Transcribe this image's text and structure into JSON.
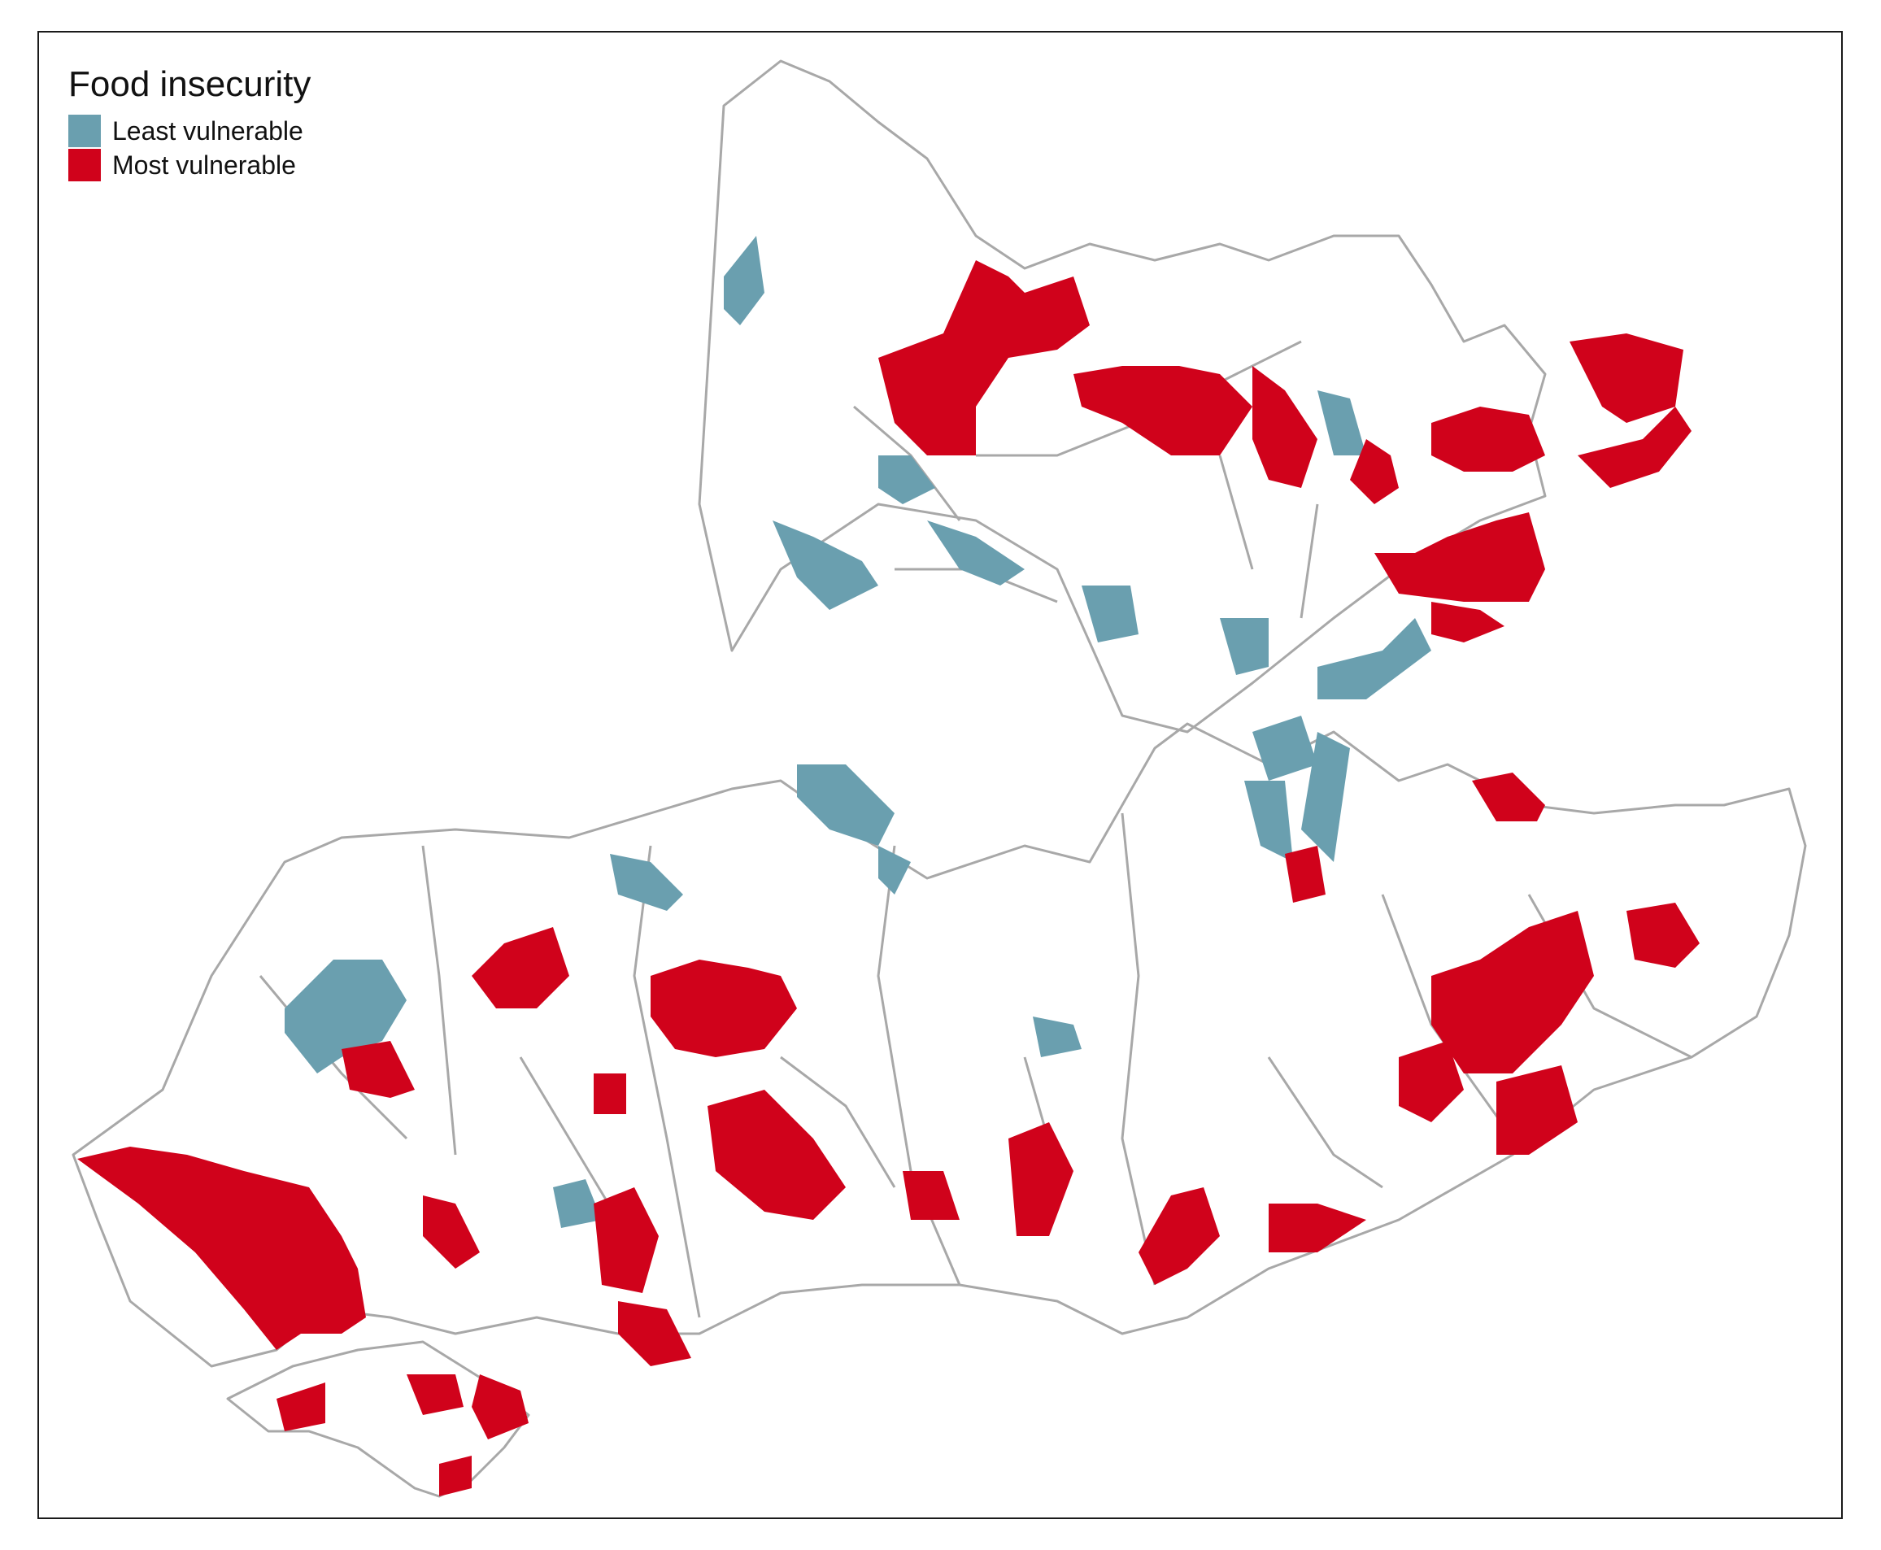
{
  "map": {
    "legend_title": "Food insecurity",
    "categories": [
      {
        "label": "Least vulnerable",
        "color": "#6a9faf"
      },
      {
        "label": "Most vulnerable",
        "color": "#d0021b"
      }
    ],
    "boundary_color": "#a8a8a8",
    "background_color": "#ffffff"
  }
}
